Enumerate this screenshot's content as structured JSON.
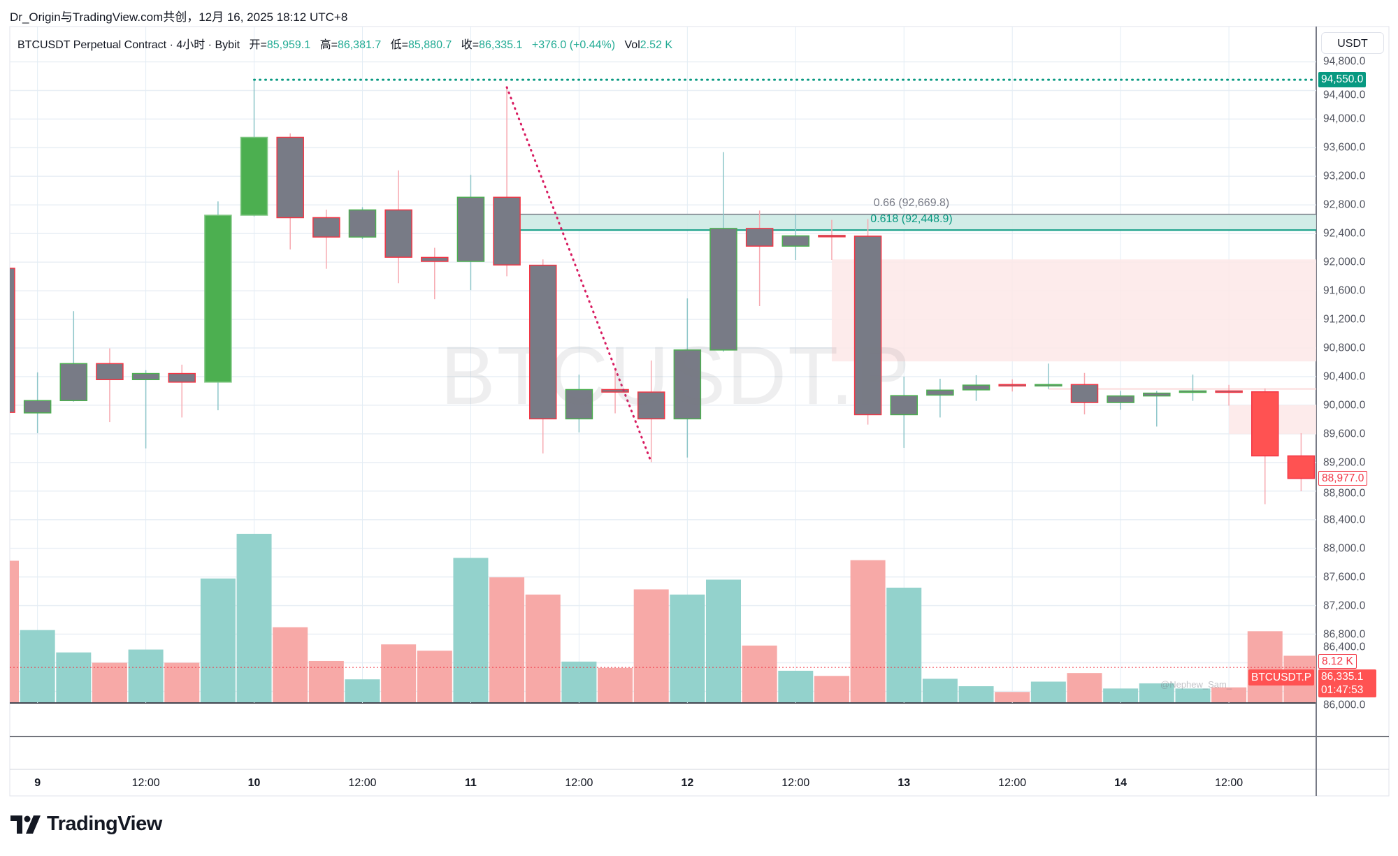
{
  "header": {
    "attribution": "Dr_Origin与TradingView.com共创，12月 16, 2025 18:12 UTC+8"
  },
  "legend": {
    "symbol": "BTCUSDT Perpetual Contract · 4小时 · Bybit",
    "open_label": "开=",
    "open": "85,959.1",
    "high_label": "高=",
    "high": "86,381.7",
    "low_label": "低=",
    "low": "85,880.7",
    "close_label": "收=",
    "close": "86,335.1",
    "change": "+376.0 (+0.44%)",
    "vol_label": "Vol",
    "vol": "2.52 K"
  },
  "currency_button": "USDT",
  "watermark": "BTCUSDT.P",
  "author_watermark": "@Nephew_Sam_",
  "logo_text": "TradingView",
  "tags": {
    "high_level": "94,550.0",
    "current_price": "88,977.0",
    "volume": "8.12 K",
    "symbol_tag": "BTCUSDT.P",
    "last_price": "86,335.1",
    "countdown": "01:47:53"
  },
  "fib": {
    "upper_label": "0.66 (92,669.8)",
    "lower_label": "0.618 (92,448.9)"
  },
  "colors": {
    "up": "#4caf50",
    "down": "#f23645",
    "body": "#787b86",
    "solid_up": "#4caf50",
    "solid_down": "#ff5252",
    "wick_up": "#8cc5c9",
    "wick_down": "#f7a9b0",
    "vol_up": "#93d2cc",
    "vol_down": "#f7a9a7",
    "fib_fill": "#cdeae4",
    "fib_line": "#089981",
    "zone": "#fde8e8",
    "level": "#089981",
    "trend": "#d81b60"
  },
  "chart_data": {
    "type": "candlestick",
    "title": "BTCUSDT Perpetual Contract · 4小时 · Bybit",
    "ylim": [
      85900,
      94900
    ],
    "y_ticks": [
      "94,800.0",
      "94,400.0",
      "94,000.0",
      "93,600.0",
      "93,200.0",
      "92,800.0",
      "92,400.0",
      "92,000.0",
      "91,600.0",
      "91,200.0",
      "90,800.0",
      "90,400.0",
      "90,000.0",
      "89,600.0",
      "89,200.0",
      "88,800.0",
      "88,400.0",
      "88,000.0",
      "87,600.0",
      "87,200.0",
      "86,800.0",
      "86,400.0",
      "86,000.0"
    ],
    "x_ticks": [
      {
        "label": "9",
        "day": true
      },
      {
        "label": "12:00",
        "day": false
      },
      {
        "label": "10",
        "day": true
      },
      {
        "label": "12:00",
        "day": false
      },
      {
        "label": "11",
        "day": true
      },
      {
        "label": "12:00",
        "day": false
      },
      {
        "label": "12",
        "day": true
      },
      {
        "label": "12:00",
        "day": false
      },
      {
        "label": "13",
        "day": true
      },
      {
        "label": "12:00",
        "day": false
      },
      {
        "label": "14",
        "day": true
      },
      {
        "label": "12:00",
        "day": false
      }
    ],
    "candles": [
      {
        "o": 91915,
        "h": 91950,
        "l": 89880,
        "c": 89900
      },
      {
        "o": 89893,
        "h": 90459,
        "l": 89609,
        "c": 90065
      },
      {
        "o": 90065,
        "h": 91316,
        "l": 90050,
        "c": 90582
      },
      {
        "o": 90582,
        "h": 90795,
        "l": 89764,
        "c": 90358
      },
      {
        "o": 90358,
        "h": 90490,
        "l": 89397,
        "c": 90443
      },
      {
        "o": 90443,
        "h": 90567,
        "l": 89829,
        "c": 90323
      },
      {
        "o": 90323,
        "h": 92849,
        "l": 89930,
        "c": 92656,
        "solid": true
      },
      {
        "o": 92656,
        "h": 94550,
        "l": 92640,
        "c": 93745,
        "solid": true
      },
      {
        "o": 93745,
        "h": 93800,
        "l": 92177,
        "c": 92622
      },
      {
        "o": 92622,
        "h": 92734,
        "l": 91907,
        "c": 92351
      },
      {
        "o": 92351,
        "h": 92768,
        "l": 92324,
        "c": 92730
      },
      {
        "o": 92730,
        "h": 93282,
        "l": 91706,
        "c": 92069
      },
      {
        "o": 92066,
        "h": 92201,
        "l": 91482,
        "c": 92011
      },
      {
        "o": 92011,
        "h": 93220,
        "l": 91610,
        "c": 92907
      },
      {
        "o": 92907,
        "h": 94444,
        "l": 91803,
        "c": 91961
      },
      {
        "o": 91957,
        "h": 92038,
        "l": 89327,
        "c": 89810
      },
      {
        "o": 89810,
        "h": 90428,
        "l": 89621,
        "c": 90219
      },
      {
        "o": 90219,
        "h": 90497,
        "l": 89887,
        "c": 90184
      },
      {
        "o": 90184,
        "h": 90625,
        "l": 89203,
        "c": 89810
      },
      {
        "o": 89810,
        "h": 91494,
        "l": 89269,
        "c": 90772
      },
      {
        "o": 90772,
        "h": 93537,
        "l": 90749,
        "c": 92471
      },
      {
        "o": 92471,
        "h": 92722,
        "l": 91386,
        "c": 92224
      },
      {
        "o": 92224,
        "h": 92668,
        "l": 92031,
        "c": 92367
      },
      {
        "o": 92374,
        "h": 92591,
        "l": 92031,
        "c": 92367
      },
      {
        "o": 92363,
        "h": 92602,
        "l": 89729,
        "c": 89868
      },
      {
        "o": 89868,
        "h": 90400,
        "l": 89404,
        "c": 90134
      },
      {
        "o": 90142,
        "h": 90370,
        "l": 89829,
        "c": 90211
      },
      {
        "o": 90215,
        "h": 90420,
        "l": 90061,
        "c": 90281
      },
      {
        "o": 90289,
        "h": 90362,
        "l": 90192,
        "c": 90281
      },
      {
        "o": 90281,
        "h": 90582,
        "l": 90227,
        "c": 90289
      },
      {
        "o": 90289,
        "h": 90451,
        "l": 89872,
        "c": 90038
      },
      {
        "o": 90038,
        "h": 90200,
        "l": 89937,
        "c": 90130
      },
      {
        "o": 90130,
        "h": 90200,
        "l": 89702,
        "c": 90169
      },
      {
        "o": 90180,
        "h": 90428,
        "l": 90061,
        "c": 90200
      },
      {
        "o": 90200,
        "h": 90285,
        "l": 89995,
        "c": 90188
      },
      {
        "o": 90188,
        "h": 90235,
        "l": 88617,
        "c": 89292,
        "solid": true
      },
      {
        "o": 89292,
        "h": 89609,
        "l": 88798,
        "c": 88977,
        "solid": true
      }
    ],
    "volumes_k": [
      24.7,
      12.6,
      8.7,
      6.9,
      9.2,
      6.9,
      21.6,
      29.4,
      13.1,
      7.2,
      4.0,
      10.1,
      9.0,
      25.2,
      21.8,
      18.8,
      7.1,
      6.0,
      19.7,
      18.8,
      21.4,
      9.9,
      5.5,
      4.6,
      24.8,
      20.0,
      4.1,
      2.8,
      1.8,
      3.6,
      5.1,
      2.4,
      3.3,
      2.4,
      2.6,
      12.4,
      8.12
    ],
    "drawings": {
      "high_level_price": 94550,
      "high_level_from_candle": 7,
      "trendline": {
        "from_candle": 14,
        "from_price": 94444,
        "to_candle": 18,
        "to_price": 89203
      },
      "fib_band": {
        "from_candle": 14,
        "top": 92669.8,
        "bottom": 92448.9
      },
      "zone_main": {
        "from_candle": 23,
        "top": 92038,
        "bottom": 90613
      },
      "zone_small": {
        "from_candle": 34,
        "top": 90000,
        "bottom": 89597
      },
      "zone_line": {
        "from_candle": 29,
        "price": 90227
      },
      "last_price_line": 86335.1
    }
  }
}
